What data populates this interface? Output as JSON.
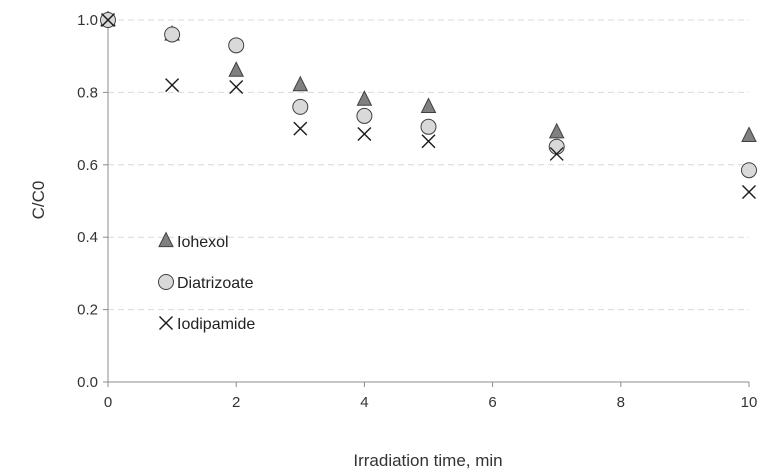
{
  "chart_data": {
    "type": "scatter",
    "xlabel": "Irradiation time, min",
    "ylabel": "C/C0",
    "xlim": [
      0,
      10
    ],
    "ylim": [
      0,
      1.0
    ],
    "xticks": [
      "0",
      "2",
      "4",
      "6",
      "8",
      "10"
    ],
    "yticks": [
      "0.0",
      "0.2",
      "0.4",
      "0.6",
      "0.8",
      "1.0"
    ],
    "grid": "horizontal dashed",
    "legend_position": "left-middle",
    "series": [
      {
        "name": "Iohexol",
        "marker": "triangle",
        "color": "#808080",
        "points": [
          [
            0,
            1.0
          ],
          [
            1,
            0.96
          ],
          [
            2,
            0.86
          ],
          [
            3,
            0.82
          ],
          [
            4,
            0.78
          ],
          [
            5,
            0.76
          ],
          [
            7,
            0.69
          ],
          [
            10,
            0.68
          ]
        ]
      },
      {
        "name": "Diatrizoate",
        "marker": "circle",
        "color": "#d9d9d9",
        "points": [
          [
            0,
            1.0
          ],
          [
            1,
            0.96
          ],
          [
            2,
            0.93
          ],
          [
            3,
            0.76
          ],
          [
            4,
            0.735
          ],
          [
            5,
            0.705
          ],
          [
            7,
            0.65
          ],
          [
            10,
            0.585
          ]
        ]
      },
      {
        "name": "Iodipamide",
        "marker": "cross",
        "color": "#1a1a1a",
        "points": [
          [
            0,
            1.0
          ],
          [
            1,
            0.82
          ],
          [
            2,
            0.815
          ],
          [
            3,
            0.7
          ],
          [
            4,
            0.685
          ],
          [
            5,
            0.665
          ],
          [
            7,
            0.63
          ],
          [
            10,
            0.525
          ]
        ]
      }
    ]
  }
}
